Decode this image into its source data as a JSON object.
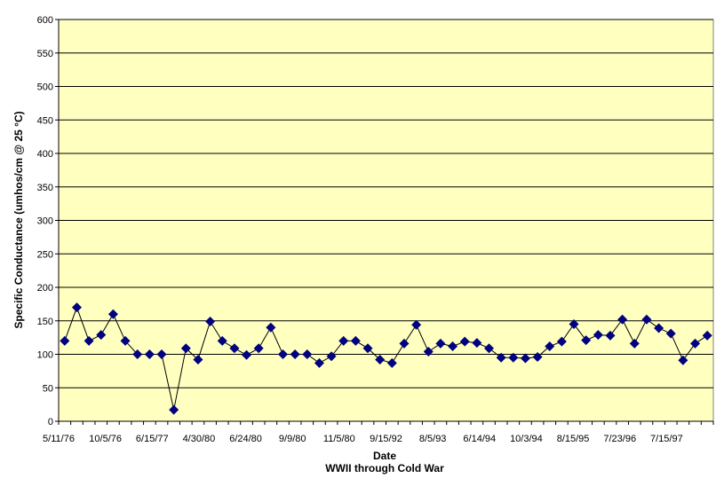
{
  "chart_data": {
    "type": "line",
    "xlabel": "Date",
    "subtitle": "WWII through Cold War",
    "ylabel": "Specific Conductance (umhos/cm @ 25 °C)",
    "ylim": [
      0,
      600
    ],
    "yticks": [
      "0",
      "50",
      "100",
      "150",
      "200",
      "250",
      "300",
      "350",
      "400",
      "450",
      "500",
      "550",
      "600"
    ],
    "xtick_labels": [
      "5/11/76",
      "10/5/76",
      "6/15/77",
      "4/30/80",
      "6/24/80",
      "9/9/80",
      "11/5/80",
      "9/15/92",
      "8/5/93",
      "6/14/94",
      "10/3/94",
      "8/15/95",
      "7/23/96",
      "7/15/97"
    ],
    "grid": true,
    "plot_background": "#ffffc0",
    "series": [
      {
        "color": "#000080",
        "marker": "diamond",
        "values": [
          120,
          170,
          120,
          129,
          160,
          120,
          100,
          100,
          100,
          17,
          109,
          92,
          149,
          120,
          109,
          99,
          109,
          140,
          100,
          100,
          100,
          87,
          97,
          120,
          120,
          109,
          92,
          87,
          116,
          144,
          104,
          116,
          112,
          119,
          117,
          109,
          95,
          95,
          94,
          96,
          112,
          119,
          145,
          121,
          129,
          128,
          152,
          116,
          152,
          139,
          131,
          91,
          116,
          128
        ]
      }
    ]
  }
}
